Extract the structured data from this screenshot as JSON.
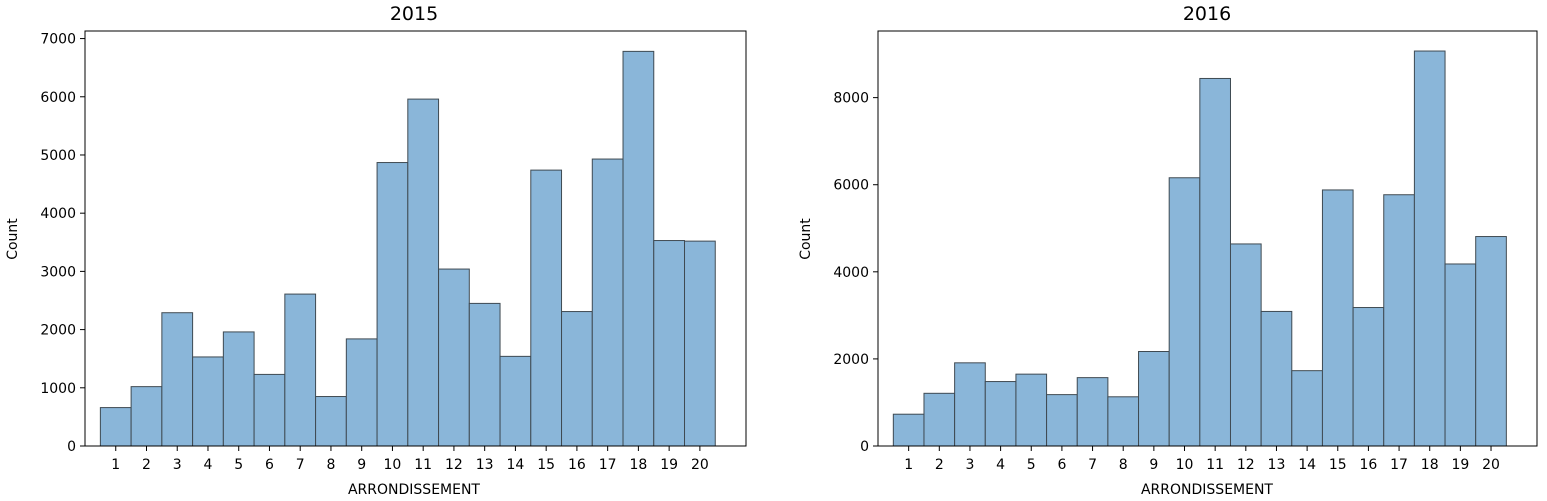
{
  "chart_data": [
    {
      "type": "bar",
      "title": "2015",
      "xlabel": "ARRONDISSEMENT",
      "ylabel": "Count",
      "categories": [
        "1",
        "2",
        "3",
        "4",
        "5",
        "6",
        "7",
        "8",
        "9",
        "10",
        "11",
        "12",
        "13",
        "14",
        "15",
        "16",
        "17",
        "18",
        "19",
        "20"
      ],
      "values": [
        660,
        1020,
        2290,
        1530,
        1960,
        1230,
        2610,
        850,
        1840,
        4870,
        5960,
        3040,
        2450,
        1540,
        4740,
        2310,
        4930,
        6780,
        3530,
        3520
      ],
      "ylim": [
        0,
        7130
      ],
      "yticks": [
        0,
        1000,
        2000,
        3000,
        4000,
        5000,
        6000,
        7000
      ],
      "bar_color": "#8ab6d9",
      "edge_color": "#3f4a52",
      "grid": false
    },
    {
      "type": "bar",
      "title": "2016",
      "xlabel": "ARRONDISSEMENT",
      "ylabel": "Count",
      "categories": [
        "1",
        "2",
        "3",
        "4",
        "5",
        "6",
        "7",
        "8",
        "9",
        "10",
        "11",
        "12",
        "13",
        "14",
        "15",
        "16",
        "17",
        "18",
        "19",
        "20"
      ],
      "values": [
        730,
        1210,
        1910,
        1480,
        1650,
        1180,
        1570,
        1130,
        2170,
        6160,
        8440,
        4640,
        3090,
        1730,
        5880,
        3180,
        5770,
        9070,
        4180,
        4810
      ],
      "ylim": [
        0,
        9530
      ],
      "yticks": [
        0,
        2000,
        4000,
        6000,
        8000
      ],
      "bar_color": "#8ab6d9",
      "edge_color": "#3f4a52",
      "grid": false
    }
  ]
}
